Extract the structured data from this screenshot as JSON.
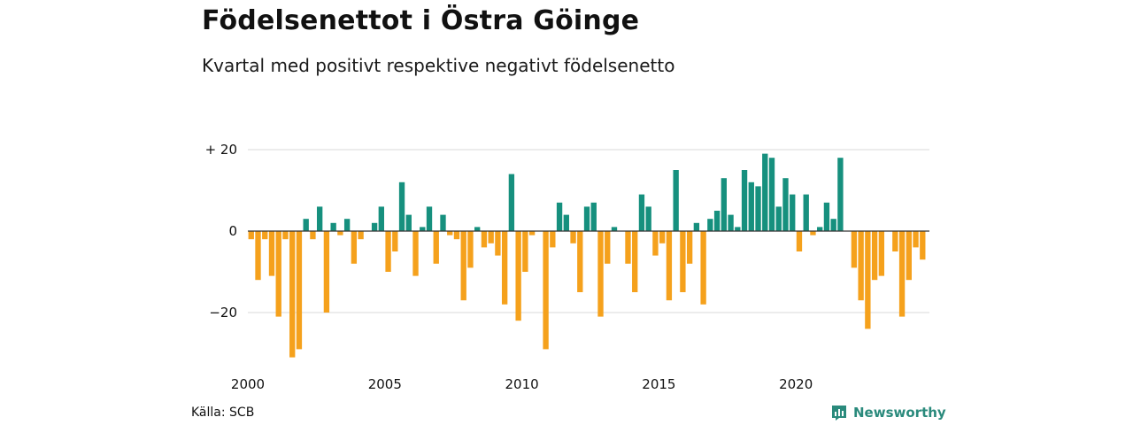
{
  "header": {
    "title": "Födelsenettot i Östra Göinge",
    "subtitle": "Kvartal med positivt respektive negativt födelsenetto"
  },
  "footer": {
    "source": "Källa: SCB",
    "brand": "Newsworthy",
    "brand_icon": "newsworthy-logo-icon"
  },
  "colors": {
    "positive": "#16907e",
    "negative": "#f5a11c",
    "grid": "#d9d9d9",
    "zero_line": "#333333",
    "brand": "#2a8a7c"
  },
  "chart_data": {
    "type": "bar",
    "title": "Födelsenettot i Östra Göinge",
    "subtitle": "Kvartal med positivt respektive negativt födelsenetto",
    "x_unit": "quarter",
    "x_start": "2000 Q1",
    "x_ticks": [
      2000,
      2005,
      2010,
      2015,
      2020
    ],
    "y_ticks": [
      {
        "value": 20,
        "label": "+ 20"
      },
      {
        "value": 0,
        "label": "0"
      },
      {
        "value": -20,
        "label": "−20"
      }
    ],
    "ylim": [
      -32,
      20
    ],
    "grid": true,
    "legend": "none",
    "values": [
      -2,
      -12,
      -2,
      -11,
      -21,
      -2,
      -31,
      -29,
      3,
      -2,
      6,
      -20,
      2,
      -1,
      3,
      -8,
      -2,
      0,
      2,
      6,
      -10,
      -5,
      12,
      4,
      -11,
      1,
      6,
      -8,
      4,
      -1,
      -2,
      -17,
      -9,
      1,
      -4,
      -3,
      -6,
      -18,
      14,
      -22,
      -10,
      -1,
      0,
      -29,
      -4,
      7,
      4,
      -3,
      -15,
      6,
      7,
      -21,
      -8,
      1,
      0,
      -8,
      -15,
      9,
      6,
      -6,
      -3,
      -17,
      15,
      -15,
      -8,
      2,
      -18,
      3,
      5,
      13,
      4,
      1,
      15,
      12,
      11,
      19,
      18,
      6,
      13,
      9,
      -5,
      9,
      -1,
      1,
      7,
      3,
      18,
      0,
      -9,
      -17,
      -24,
      -12,
      -11,
      0,
      -5,
      -21,
      -12,
      -4,
      -7
    ]
  }
}
